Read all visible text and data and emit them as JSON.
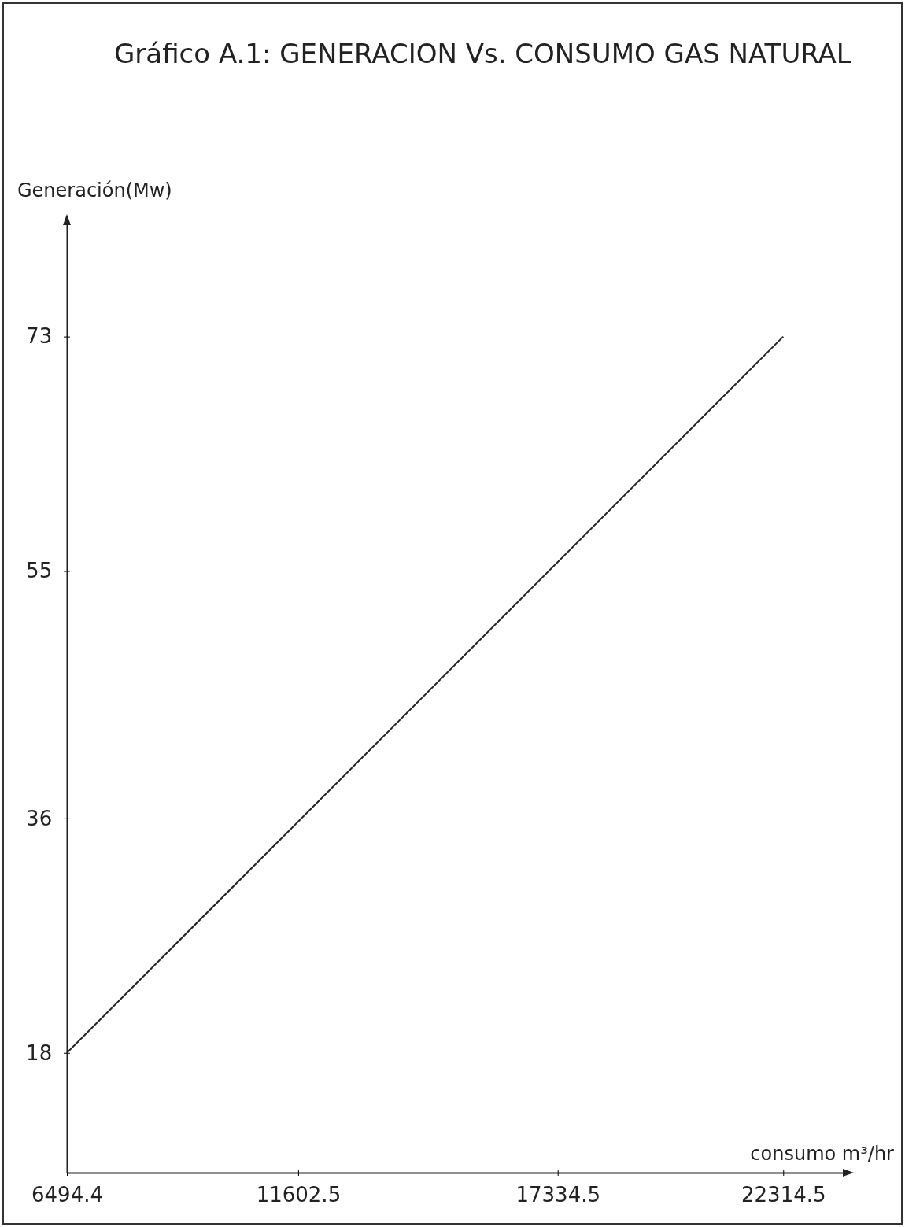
{
  "chart_data": {
    "type": "line",
    "title": "Gráfico A.1: GENERACION Vs. CONSUMO GAS NATURAL",
    "xlabel": "consumo m³/hr",
    "ylabel": "Generación(Mw)",
    "series": [
      {
        "color": "#222222",
        "x": [
          6494.4,
          22314.5
        ],
        "values": [
          18,
          73
        ]
      }
    ],
    "xlim": [
      6494.4,
      23700
    ],
    "xticks": [
      6494.4,
      11602.5,
      17334.5,
      22314.5
    ],
    "ylim": [
      8.8,
      81.8
    ],
    "yticks": [
      18,
      36,
      55,
      73
    ],
    "grid": false,
    "marker": "none",
    "line_style": "solid"
  }
}
